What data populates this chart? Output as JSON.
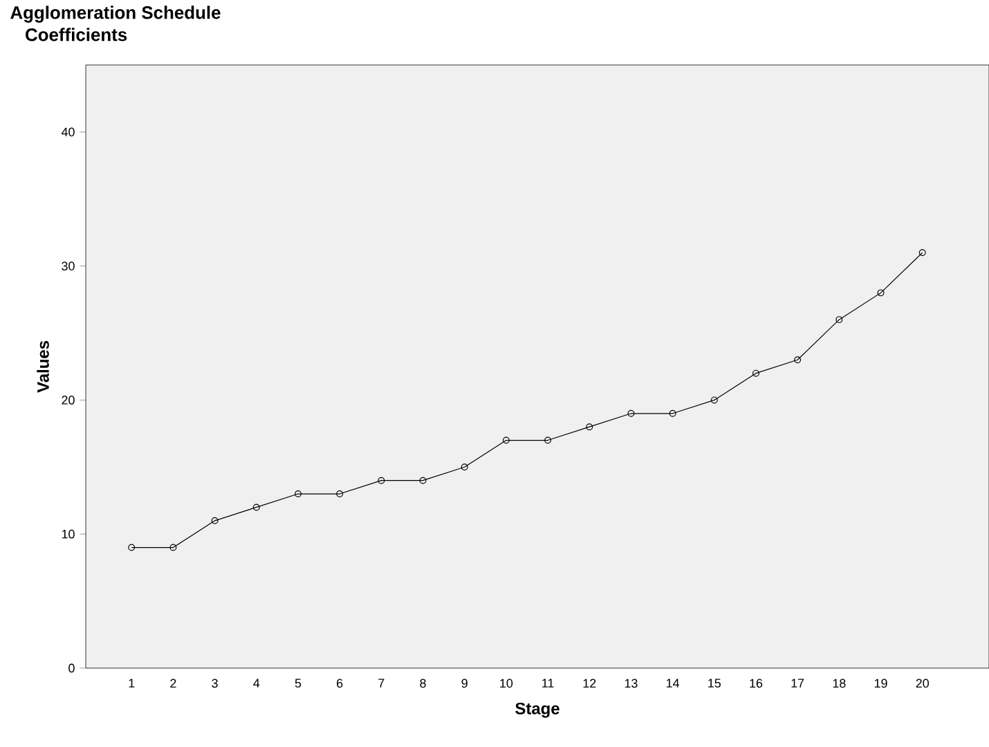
{
  "chart_data": {
    "type": "line",
    "title": "Agglomeration Schedule",
    "subtitle": " Coefficients",
    "xlabel": "Stage",
    "ylabel": "Values",
    "categories": [
      "1",
      "2",
      "3",
      "4",
      "5",
      "6",
      "7",
      "8",
      "9",
      "10",
      "11",
      "12",
      "13",
      "14",
      "15",
      "16",
      "17",
      "18",
      "19",
      "20"
    ],
    "values": [
      9,
      9,
      11,
      12,
      13,
      13,
      14,
      14,
      15,
      17,
      17,
      18,
      19,
      19,
      20,
      22,
      23,
      26,
      28,
      31
    ],
    "color": "#000000",
    "marker": "circle",
    "line_style": "solid",
    "grid": false,
    "ylim": [
      0,
      45
    ],
    "yticks": [
      0,
      10,
      20,
      30,
      40
    ]
  }
}
